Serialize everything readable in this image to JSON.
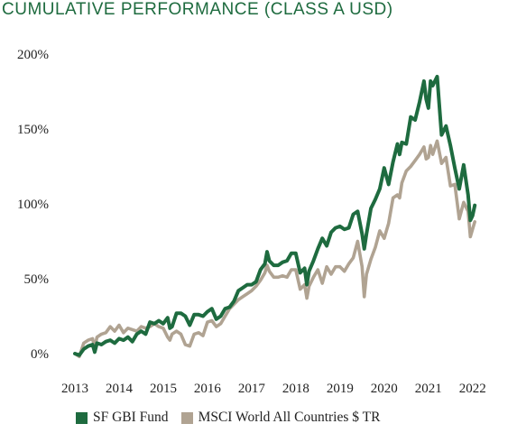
{
  "title": "CUMULATIVE PERFORMANCE (CLASS A USD)",
  "colors": {
    "fund": "#1e6b3f",
    "index": "#b0a392",
    "title": "#1e6b3f"
  },
  "chart_data": {
    "type": "line",
    "title": "CUMULATIVE PERFORMANCE (CLASS A USD)",
    "xlabel": "",
    "ylabel": "",
    "xlim": [
      2013,
      2022.7
    ],
    "ylim": [
      0,
      200
    ],
    "x_ticks": [
      "2013",
      "2014",
      "2015",
      "2016",
      "2017",
      "2018",
      "2019",
      "2020",
      "2021",
      "2022"
    ],
    "y_ticks": [
      {
        "value": 0,
        "label": "0%"
      },
      {
        "value": 50,
        "label": "50%"
      },
      {
        "value": 100,
        "label": "100%"
      },
      {
        "value": 150,
        "label": "150%"
      },
      {
        "value": 200,
        "label": "200%"
      }
    ],
    "grid": false,
    "legend_position": "bottom",
    "series": [
      {
        "name": "SF GBI Fund",
        "color": "#1e6b3f",
        "points": [
          [
            2013.0,
            0
          ],
          [
            2013.1,
            -1
          ],
          [
            2013.2,
            3
          ],
          [
            2013.3,
            5
          ],
          [
            2013.4,
            6
          ],
          [
            2013.45,
            1
          ],
          [
            2013.5,
            7
          ],
          [
            2013.6,
            6
          ],
          [
            2013.7,
            8
          ],
          [
            2013.8,
            9
          ],
          [
            2013.9,
            7
          ],
          [
            2014.0,
            10
          ],
          [
            2014.1,
            9
          ],
          [
            2014.2,
            11
          ],
          [
            2014.3,
            8
          ],
          [
            2014.4,
            13
          ],
          [
            2014.5,
            15
          ],
          [
            2014.6,
            13
          ],
          [
            2014.7,
            21
          ],
          [
            2014.8,
            20
          ],
          [
            2014.9,
            22
          ],
          [
            2015.0,
            20
          ],
          [
            2015.1,
            24
          ],
          [
            2015.15,
            17
          ],
          [
            2015.2,
            18
          ],
          [
            2015.3,
            27
          ],
          [
            2015.4,
            27
          ],
          [
            2015.5,
            25
          ],
          [
            2015.6,
            19
          ],
          [
            2015.7,
            26
          ],
          [
            2015.8,
            26
          ],
          [
            2015.9,
            25
          ],
          [
            2016.0,
            28
          ],
          [
            2016.1,
            30
          ],
          [
            2016.2,
            23
          ],
          [
            2016.3,
            25
          ],
          [
            2016.4,
            30
          ],
          [
            2016.5,
            31
          ],
          [
            2016.6,
            35
          ],
          [
            2016.7,
            42
          ],
          [
            2016.8,
            44
          ],
          [
            2016.9,
            46
          ],
          [
            2017.0,
            46
          ],
          [
            2017.1,
            48
          ],
          [
            2017.2,
            56
          ],
          [
            2017.3,
            60
          ],
          [
            2017.35,
            68
          ],
          [
            2017.4,
            62
          ],
          [
            2017.5,
            59
          ],
          [
            2017.6,
            59
          ],
          [
            2017.7,
            61
          ],
          [
            2017.8,
            62
          ],
          [
            2017.9,
            67
          ],
          [
            2018.0,
            67
          ],
          [
            2018.1,
            54
          ],
          [
            2018.2,
            57
          ],
          [
            2018.25,
            46
          ],
          [
            2018.3,
            55
          ],
          [
            2018.4,
            62
          ],
          [
            2018.5,
            70
          ],
          [
            2018.6,
            77
          ],
          [
            2018.7,
            72
          ],
          [
            2018.8,
            81
          ],
          [
            2018.9,
            84
          ],
          [
            2019.0,
            85
          ],
          [
            2019.1,
            83
          ],
          [
            2019.2,
            84
          ],
          [
            2019.3,
            93
          ],
          [
            2019.4,
            95
          ],
          [
            2019.5,
            80
          ],
          [
            2019.55,
            70
          ],
          [
            2019.6,
            80
          ],
          [
            2019.7,
            97
          ],
          [
            2019.8,
            103
          ],
          [
            2019.9,
            110
          ],
          [
            2020.0,
            124
          ],
          [
            2020.1,
            113
          ],
          [
            2020.2,
            128
          ],
          [
            2020.3,
            140
          ],
          [
            2020.35,
            133
          ],
          [
            2020.4,
            141
          ],
          [
            2020.5,
            140
          ],
          [
            2020.6,
            158
          ],
          [
            2020.7,
            156
          ],
          [
            2020.8,
            168
          ],
          [
            2020.9,
            182
          ],
          [
            2020.95,
            170
          ],
          [
            2021.0,
            164
          ],
          [
            2021.05,
            182
          ],
          [
            2021.1,
            179
          ],
          [
            2021.2,
            185
          ],
          [
            2021.3,
            146
          ],
          [
            2021.4,
            152
          ],
          [
            2021.5,
            139
          ],
          [
            2021.6,
            124
          ],
          [
            2021.7,
            110
          ],
          [
            2021.8,
            126
          ],
          [
            2021.9,
            106
          ],
          [
            2021.95,
            89
          ],
          [
            2022.0,
            92
          ],
          [
            2022.05,
            99
          ]
        ]
      },
      {
        "name": "MSCI World All Countries $ TR",
        "color": "#b0a392",
        "points": [
          [
            2013.0,
            0
          ],
          [
            2013.1,
            -2
          ],
          [
            2013.2,
            7
          ],
          [
            2013.3,
            9
          ],
          [
            2013.4,
            10
          ],
          [
            2013.45,
            4
          ],
          [
            2013.5,
            11
          ],
          [
            2013.6,
            13
          ],
          [
            2013.7,
            14
          ],
          [
            2013.8,
            18
          ],
          [
            2013.9,
            15
          ],
          [
            2014.0,
            19
          ],
          [
            2014.1,
            14
          ],
          [
            2014.2,
            17
          ],
          [
            2014.3,
            16
          ],
          [
            2014.4,
            15
          ],
          [
            2014.5,
            18
          ],
          [
            2014.6,
            17
          ],
          [
            2014.7,
            18
          ],
          [
            2014.8,
            20
          ],
          [
            2014.9,
            18
          ],
          [
            2015.0,
            17
          ],
          [
            2015.1,
            11
          ],
          [
            2015.15,
            9
          ],
          [
            2015.2,
            13
          ],
          [
            2015.3,
            15
          ],
          [
            2015.4,
            13
          ],
          [
            2015.5,
            6
          ],
          [
            2015.6,
            5
          ],
          [
            2015.7,
            13
          ],
          [
            2015.8,
            14
          ],
          [
            2015.9,
            12
          ],
          [
            2016.0,
            21
          ],
          [
            2016.1,
            22
          ],
          [
            2016.2,
            18
          ],
          [
            2016.3,
            20
          ],
          [
            2016.4,
            25
          ],
          [
            2016.5,
            30
          ],
          [
            2016.6,
            33
          ],
          [
            2016.7,
            36
          ],
          [
            2016.8,
            38
          ],
          [
            2016.9,
            40
          ],
          [
            2017.0,
            42
          ],
          [
            2017.1,
            45
          ],
          [
            2017.2,
            49
          ],
          [
            2017.3,
            54
          ],
          [
            2017.35,
            59
          ],
          [
            2017.4,
            55
          ],
          [
            2017.5,
            51
          ],
          [
            2017.6,
            51
          ],
          [
            2017.7,
            52
          ],
          [
            2017.8,
            51
          ],
          [
            2017.9,
            56
          ],
          [
            2018.0,
            56
          ],
          [
            2018.1,
            43
          ],
          [
            2018.2,
            46
          ],
          [
            2018.25,
            37
          ],
          [
            2018.3,
            45
          ],
          [
            2018.4,
            51
          ],
          [
            2018.5,
            56
          ],
          [
            2018.6,
            47
          ],
          [
            2018.7,
            58
          ],
          [
            2018.8,
            53
          ],
          [
            2018.9,
            58
          ],
          [
            2019.0,
            58
          ],
          [
            2019.1,
            55
          ],
          [
            2019.2,
            60
          ],
          [
            2019.3,
            64
          ],
          [
            2019.4,
            75
          ],
          [
            2019.5,
            58
          ],
          [
            2019.55,
            38
          ],
          [
            2019.6,
            53
          ],
          [
            2019.7,
            63
          ],
          [
            2019.8,
            71
          ],
          [
            2019.9,
            82
          ],
          [
            2020.0,
            77
          ],
          [
            2020.1,
            87
          ],
          [
            2020.2,
            104
          ],
          [
            2020.3,
            106
          ],
          [
            2020.35,
            104
          ],
          [
            2020.4,
            114
          ],
          [
            2020.5,
            122
          ],
          [
            2020.6,
            125
          ],
          [
            2020.7,
            129
          ],
          [
            2020.8,
            133
          ],
          [
            2020.9,
            138
          ],
          [
            2020.95,
            130
          ],
          [
            2021.0,
            131
          ],
          [
            2021.05,
            139
          ],
          [
            2021.1,
            133
          ],
          [
            2021.2,
            142
          ],
          [
            2021.3,
            127
          ],
          [
            2021.4,
            131
          ],
          [
            2021.5,
            112
          ],
          [
            2021.6,
            113
          ],
          [
            2021.7,
            90
          ],
          [
            2021.8,
            101
          ],
          [
            2021.9,
            95
          ],
          [
            2021.95,
            78
          ],
          [
            2022.0,
            83
          ],
          [
            2022.05,
            88
          ]
        ]
      }
    ]
  }
}
